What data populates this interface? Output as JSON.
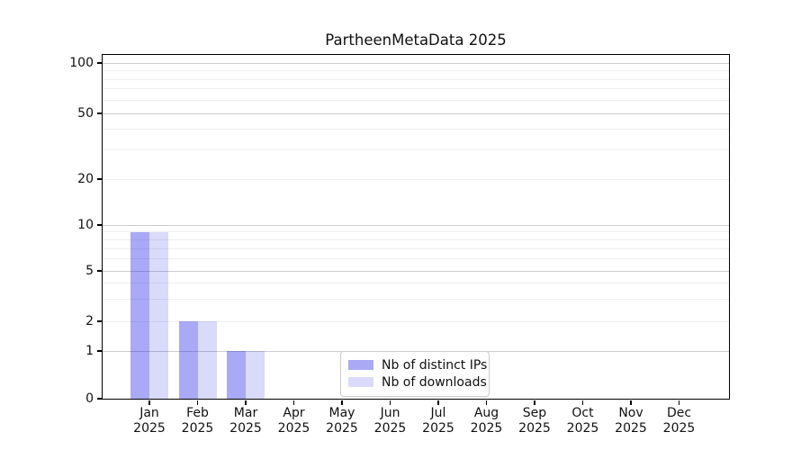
{
  "window": {
    "background_color": "#ffffff",
    "text_color": "#111111"
  },
  "chart_data": {
    "type": "bar",
    "title": "PartheenMetaData 2025",
    "categories": [
      "Jan",
      "Feb",
      "Mar",
      "Apr",
      "May",
      "Jun",
      "Jul",
      "Aug",
      "Sep",
      "Oct",
      "Nov",
      "Dec"
    ],
    "year_label": "2025",
    "series": [
      {
        "name": "Nb of distinct IPs",
        "color": "rgba(10,10,225,0.35)",
        "effective_hex": "#aaaaf4",
        "values": [
          9,
          2,
          1,
          0,
          0,
          0,
          0,
          0,
          0,
          0,
          0,
          0
        ]
      },
      {
        "name": "Nb of downloads",
        "color": "rgba(10,10,225,0.15)",
        "effective_hex": "#d9d9fa",
        "values": [
          9,
          2,
          1,
          0,
          0,
          0,
          0,
          0,
          0,
          0,
          0,
          0
        ]
      }
    ],
    "xlabel": "",
    "ylabel": "",
    "yscale": "symlog",
    "y_ticks": [
      0,
      1,
      2,
      5,
      10,
      20,
      50,
      100
    ],
    "minor_gridlines": [
      2,
      3,
      4,
      6,
      7,
      8,
      9,
      20,
      30,
      40,
      60,
      70,
      80,
      90
    ],
    "major_gridlines": [
      1,
      5,
      10,
      50,
      100
    ],
    "ylim": [
      0,
      120
    ],
    "grid": true,
    "grid_minor_color": "#ececec",
    "grid_major_color": "#c9c9c9",
    "legend_position": "lower center"
  }
}
